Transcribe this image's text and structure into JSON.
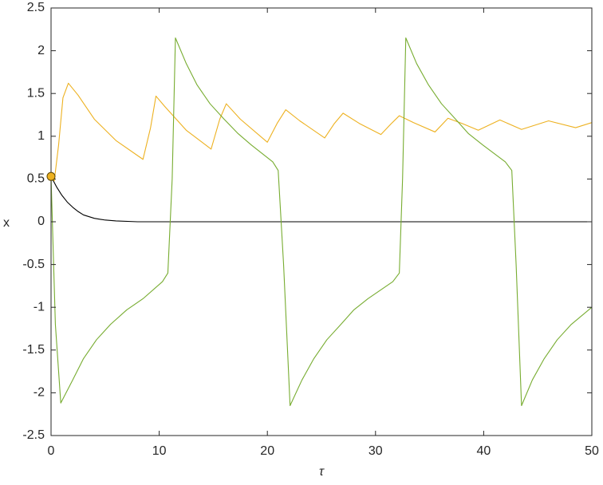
{
  "chart_data": {
    "type": "line",
    "xlabel": "τ",
    "ylabel": "x",
    "xlim": [
      0,
      50
    ],
    "ylim": [
      -2.5,
      2.5
    ],
    "xticks": [
      0,
      10,
      20,
      30,
      40,
      50
    ],
    "yticks": [
      -2.5,
      -2,
      -1.5,
      -1,
      -0.5,
      0,
      0.5,
      1,
      1.5,
      2,
      2.5
    ],
    "grid": false,
    "series": [
      {
        "color": "#000000",
        "x": [
          0,
          0.5,
          1,
          1.5,
          2,
          2.5,
          3,
          4,
          5,
          6,
          8,
          50
        ],
        "values": [
          0.53,
          0.41,
          0.31,
          0.23,
          0.17,
          0.12,
          0.08,
          0.04,
          0.02,
          0.01,
          0,
          0
        ]
      },
      {
        "color": "#edb120",
        "x": [
          0,
          0.3,
          0.7,
          1.1,
          1.6,
          2.5,
          4,
          6,
          8.5,
          9.2,
          9.7,
          10.5,
          12.5,
          14.8,
          15.6,
          16.2,
          17.5,
          20,
          20.9,
          21.7,
          23,
          25.3,
          26.2,
          27,
          28.5,
          30.5,
          31.4,
          32.2,
          33.5,
          35.5,
          36.7,
          38,
          39.5,
          41.5,
          43.5,
          46,
          48.5,
          50
        ],
        "values": [
          0.53,
          0.48,
          0.9,
          1.45,
          1.62,
          1.48,
          1.2,
          0.95,
          0.73,
          1.1,
          1.47,
          1.35,
          1.07,
          0.85,
          1.2,
          1.38,
          1.2,
          0.93,
          1.15,
          1.31,
          1.18,
          0.98,
          1.15,
          1.27,
          1.15,
          1.02,
          1.14,
          1.24,
          1.16,
          1.05,
          1.21,
          1.15,
          1.07,
          1.19,
          1.08,
          1.18,
          1.1,
          1.16
        ]
      },
      {
        "color": "#77ac30",
        "x": [
          0,
          0.4,
          0.9,
          2,
          3,
          4.2,
          5.5,
          7,
          8.5,
          10.3,
          10.8,
          11.2,
          11.5,
          12.5,
          13.5,
          14.7,
          16,
          17.3,
          18.5,
          20.5,
          21,
          21.5,
          22.1,
          23.2,
          24.3,
          25.5,
          26.8,
          28,
          29.3,
          31.6,
          32.2,
          32.5,
          32.8,
          33.8,
          34.9,
          36.1,
          37.4,
          38.6,
          39.9,
          42,
          42.6,
          43,
          43.5,
          44.5,
          45.6,
          46.8,
          48.1,
          50
        ],
        "values": [
          0.53,
          -1.2,
          -2.12,
          -1.85,
          -1.6,
          -1.38,
          -1.2,
          -1.03,
          -0.9,
          -0.7,
          -0.6,
          0.5,
          2.15,
          1.85,
          1.6,
          1.38,
          1.2,
          1.03,
          0.9,
          0.7,
          0.6,
          -0.5,
          -2.15,
          -1.85,
          -1.6,
          -1.38,
          -1.2,
          -1.03,
          -0.9,
          -0.7,
          -0.6,
          0.5,
          2.15,
          1.85,
          1.6,
          1.38,
          1.2,
          1.03,
          0.9,
          0.7,
          0.6,
          -0.5,
          -2.15,
          -1.85,
          -1.6,
          -1.38,
          -1.2,
          -1.0
        ]
      },
      {
        "color": "#edb120",
        "style": "marker",
        "x": [
          0
        ],
        "values": [
          0.53
        ]
      }
    ]
  }
}
